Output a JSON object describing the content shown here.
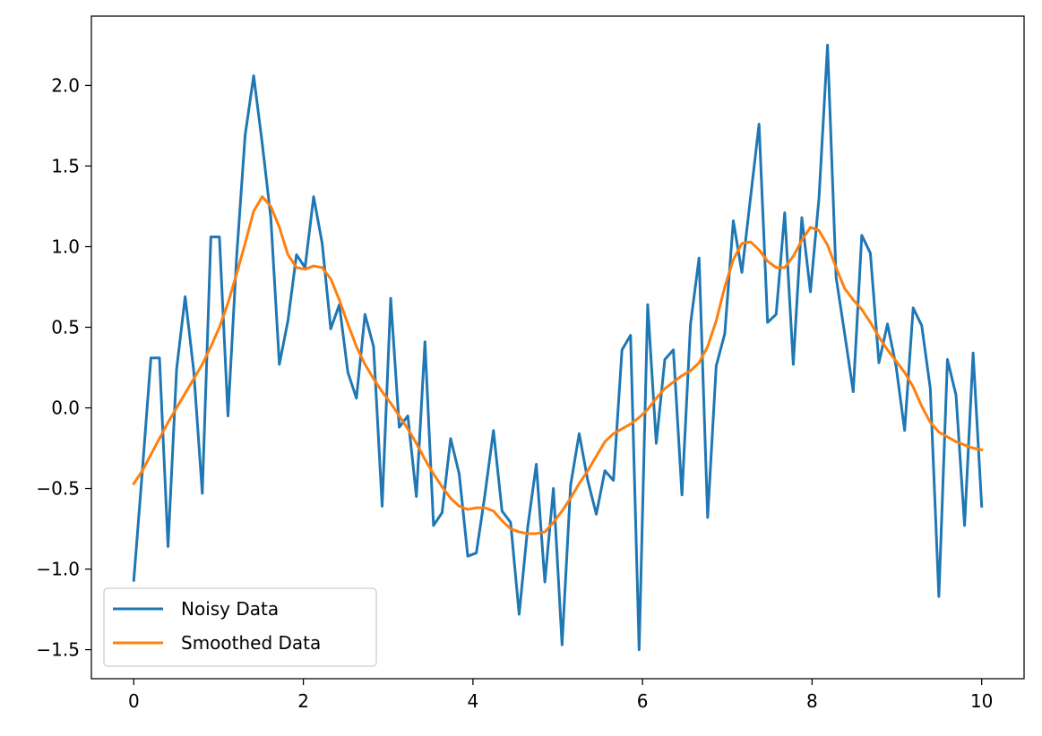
{
  "chart_data": {
    "type": "line",
    "title": "",
    "xlabel": "",
    "ylabel": "",
    "xlim": [
      -0.5,
      10.5
    ],
    "ylim": [
      -1.68,
      2.43
    ],
    "x_ticks": [
      0,
      2,
      4,
      6,
      8,
      10
    ],
    "x_tick_labels": [
      "0",
      "2",
      "4",
      "6",
      "8",
      "10"
    ],
    "y_ticks": [
      -1.5,
      -1.0,
      -0.5,
      0.0,
      0.5,
      1.0,
      1.5,
      2.0
    ],
    "y_tick_labels": [
      "−1.5",
      "−1.0",
      "−0.5",
      "0.0",
      "0.5",
      "1.0",
      "1.5",
      "2.0"
    ],
    "grid": false,
    "legend_position": "lower-left",
    "x": [
      0.0,
      0.101,
      0.202,
      0.303,
      0.404,
      0.505,
      0.606,
      0.707,
      0.808,
      0.909,
      1.01,
      1.111,
      1.212,
      1.313,
      1.414,
      1.515,
      1.616,
      1.717,
      1.818,
      1.919,
      2.02,
      2.121,
      2.222,
      2.323,
      2.424,
      2.525,
      2.626,
      2.727,
      2.828,
      2.929,
      3.03,
      3.131,
      3.232,
      3.333,
      3.434,
      3.535,
      3.636,
      3.737,
      3.838,
      3.939,
      4.04,
      4.141,
      4.242,
      4.343,
      4.444,
      4.545,
      4.646,
      4.747,
      4.848,
      4.949,
      5.051,
      5.152,
      5.253,
      5.354,
      5.455,
      5.556,
      5.657,
      5.758,
      5.859,
      5.96,
      6.061,
      6.162,
      6.263,
      6.364,
      6.465,
      6.566,
      6.667,
      6.768,
      6.869,
      6.97,
      7.071,
      7.172,
      7.273,
      7.374,
      7.475,
      7.576,
      7.677,
      7.778,
      7.879,
      7.98,
      8.081,
      8.182,
      8.283,
      8.384,
      8.485,
      8.586,
      8.687,
      8.788,
      8.889,
      8.99,
      9.091,
      9.192,
      9.293,
      9.394,
      9.495,
      9.596,
      9.697,
      9.798,
      9.899,
      10.0
    ],
    "series": [
      {
        "name": "Noisy Data",
        "color": "#1f77b4",
        "values": [
          -1.07,
          -0.39,
          0.31,
          0.31,
          -0.86,
          0.24,
          0.69,
          0.23,
          -0.53,
          1.06,
          1.06,
          -0.05,
          0.93,
          1.69,
          2.06,
          1.64,
          1.18,
          0.27,
          0.54,
          0.95,
          0.87,
          1.31,
          1.02,
          0.49,
          0.64,
          0.22,
          0.06,
          0.58,
          0.38,
          -0.61,
          0.68,
          -0.12,
          -0.05,
          -0.55,
          0.41,
          -0.73,
          -0.65,
          -0.19,
          -0.41,
          -0.92,
          -0.9,
          -0.54,
          -0.14,
          -0.64,
          -0.71,
          -1.28,
          -0.74,
          -0.35,
          -1.08,
          -0.5,
          -1.47,
          -0.48,
          -0.16,
          -0.45,
          -0.66,
          -0.39,
          -0.45,
          0.36,
          0.45,
          -1.5,
          0.64,
          -0.22,
          0.3,
          0.36,
          -0.54,
          0.52,
          0.93,
          -0.68,
          0.26,
          0.46,
          1.16,
          0.84,
          1.3,
          1.76,
          0.53,
          0.58,
          1.21,
          0.27,
          1.18,
          0.72,
          1.3,
          2.25,
          0.81,
          0.46,
          0.1,
          1.07,
          0.96,
          0.28,
          0.52,
          0.26,
          -0.14,
          0.62,
          0.51,
          0.12,
          -1.17,
          0.3,
          0.08,
          -0.73,
          0.34,
          -0.61
        ]
      },
      {
        "name": "Smoothed Data",
        "color": "#ff7f0e",
        "values": [
          -0.47,
          -0.39,
          -0.29,
          -0.19,
          -0.09,
          0.0,
          0.09,
          0.18,
          0.27,
          0.38,
          0.5,
          0.65,
          0.83,
          1.02,
          1.22,
          1.31,
          1.25,
          1.12,
          0.95,
          0.87,
          0.86,
          0.88,
          0.87,
          0.8,
          0.67,
          0.52,
          0.38,
          0.27,
          0.18,
          0.1,
          0.03,
          -0.05,
          -0.13,
          -0.22,
          -0.32,
          -0.41,
          -0.49,
          -0.56,
          -0.61,
          -0.63,
          -0.62,
          -0.62,
          -0.64,
          -0.7,
          -0.75,
          -0.77,
          -0.78,
          -0.78,
          -0.77,
          -0.71,
          -0.64,
          -0.56,
          -0.47,
          -0.39,
          -0.3,
          -0.21,
          -0.16,
          -0.13,
          -0.1,
          -0.06,
          -0.01,
          0.06,
          0.12,
          0.16,
          0.2,
          0.23,
          0.28,
          0.38,
          0.54,
          0.75,
          0.92,
          1.02,
          1.03,
          0.98,
          0.91,
          0.87,
          0.87,
          0.94,
          1.04,
          1.12,
          1.1,
          1.01,
          0.87,
          0.74,
          0.67,
          0.61,
          0.53,
          0.44,
          0.36,
          0.29,
          0.22,
          0.13,
          0.01,
          -0.09,
          -0.15,
          -0.18,
          -0.21,
          -0.23,
          -0.25,
          -0.26
        ]
      }
    ]
  }
}
